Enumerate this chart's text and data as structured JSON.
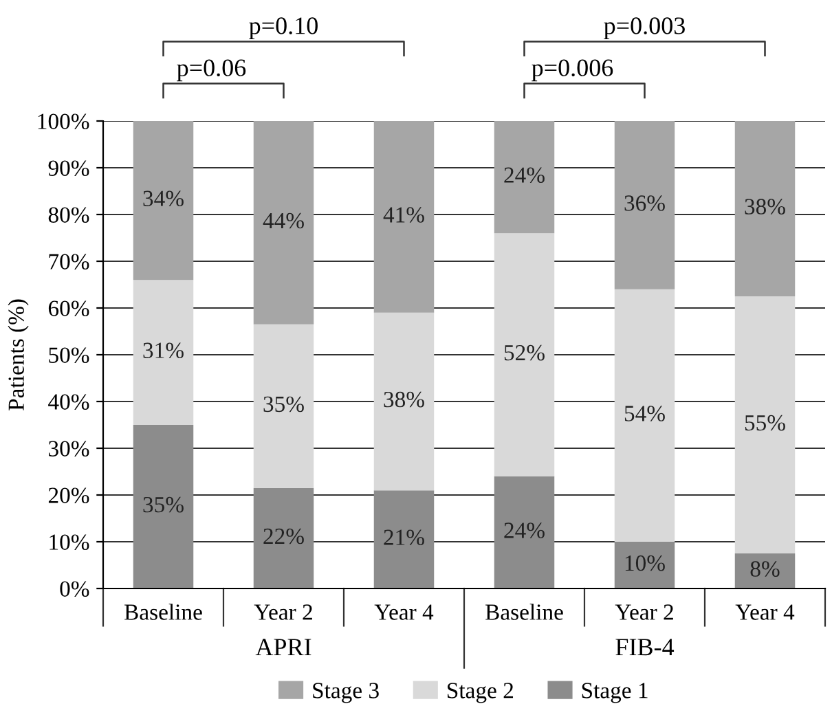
{
  "chart_data": {
    "type": "bar",
    "stacked": true,
    "ylabel": "Patients (%)",
    "categories": [
      "Baseline",
      "Year 2",
      "Year 4",
      "Baseline",
      "Year 2",
      "Year 4"
    ],
    "series": [
      {
        "name": "Stage 1",
        "color": "#8c8c8c",
        "values": [
          35,
          21.5,
          21,
          24,
          10,
          7.5
        ],
        "value_labels": [
          "35%",
          "22%",
          "21%",
          "24%",
          "10%",
          "8%"
        ]
      },
      {
        "name": "Stage 2",
        "color": "#d9d9d9",
        "values": [
          31,
          35,
          38,
          52,
          54,
          55
        ],
        "value_labels": [
          "31%",
          "35%",
          "38%",
          "52%",
          "54%",
          "55%"
        ]
      },
      {
        "name": "Stage 3",
        "color": "#a6a6a6",
        "values": [
          34,
          43.5,
          41,
          24,
          36,
          37.5
        ],
        "value_labels": [
          "34%",
          "44%",
          "41%",
          "24%",
          "36%",
          "38%"
        ]
      }
    ],
    "ylim": [
      0,
      100
    ],
    "yticks": [
      {
        "value": 0,
        "label": "0%"
      },
      {
        "value": 10,
        "label": "10%"
      },
      {
        "value": 20,
        "label": "20%"
      },
      {
        "value": 30,
        "label": "30%"
      },
      {
        "value": 40,
        "label": "40%"
      },
      {
        "value": 50,
        "label": "50%"
      },
      {
        "value": 60,
        "label": "60%"
      },
      {
        "value": 70,
        "label": "70%"
      },
      {
        "value": 80,
        "label": "80%"
      },
      {
        "value": 90,
        "label": "90%"
      },
      {
        "value": 100,
        "label": "100%"
      }
    ],
    "grid": "y",
    "legend": "bottom",
    "annotations": [
      "p=0.10",
      "p=0.06",
      "p=0.003",
      "p=0.006",
      "APRI",
      "FIB-4"
    ]
  }
}
